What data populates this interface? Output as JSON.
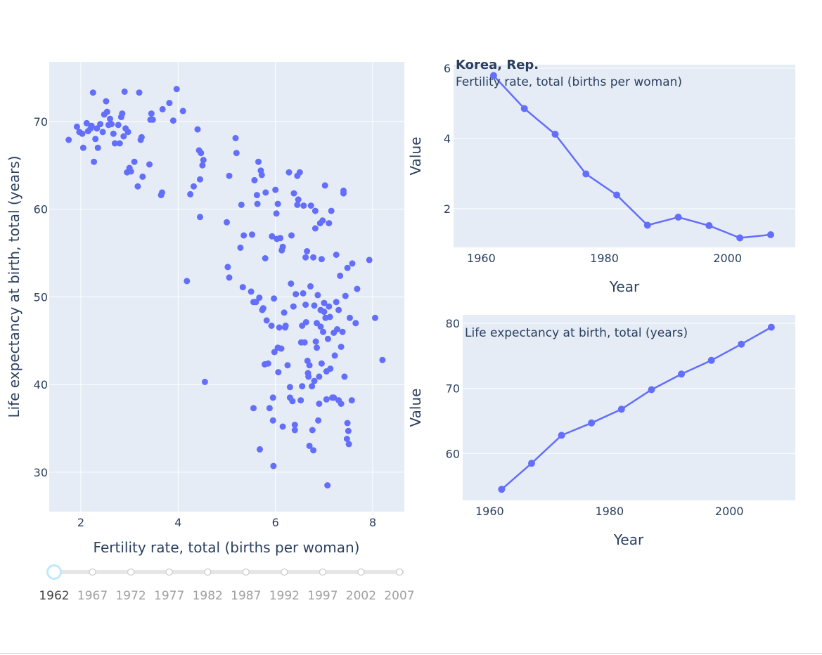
{
  "colors": {
    "marker": "#636efa",
    "plot_bg": "#e5ecf6",
    "text": "#2a3f5f"
  },
  "chart_data": [
    {
      "type": "scatter",
      "xlabel": "Fertility rate, total (births per woman)",
      "ylabel": "Life expectancy at birth, total (years)",
      "xlim": [
        1.35,
        8.65
      ],
      "ylim": [
        25.5,
        76.8
      ],
      "xticks": [
        2,
        4,
        6,
        8
      ],
      "yticks": [
        30,
        40,
        50,
        60,
        70
      ],
      "grid": true,
      "points": [
        [
          1.75,
          67.9
        ],
        [
          1.92,
          69.4
        ],
        [
          1.97,
          68.8
        ],
        [
          2.03,
          68.6
        ],
        [
          2.05,
          67.0
        ],
        [
          2.12,
          69.8
        ],
        [
          2.15,
          68.9
        ],
        [
          2.2,
          69.2
        ],
        [
          2.22,
          69.5
        ],
        [
          2.25,
          73.3
        ],
        [
          2.27,
          65.4
        ],
        [
          2.3,
          68.0
        ],
        [
          2.33,
          69.2
        ],
        [
          2.35,
          67.0
        ],
        [
          2.4,
          69.7
        ],
        [
          2.45,
          68.8
        ],
        [
          2.48,
          70.8
        ],
        [
          2.52,
          72.3
        ],
        [
          2.54,
          71.1
        ],
        [
          2.57,
          69.6
        ],
        [
          2.6,
          70.3
        ],
        [
          2.63,
          69.7
        ],
        [
          2.67,
          68.6
        ],
        [
          2.7,
          67.5
        ],
        [
          2.77,
          69.6
        ],
        [
          2.8,
          67.5
        ],
        [
          2.83,
          70.5
        ],
        [
          2.85,
          70.9
        ],
        [
          2.88,
          68.3
        ],
        [
          2.9,
          73.4
        ],
        [
          2.92,
          69.2
        ],
        [
          2.95,
          64.2
        ],
        [
          2.97,
          68.8
        ],
        [
          3.0,
          64.7
        ],
        [
          3.03,
          64.3
        ],
        [
          3.1,
          65.4
        ],
        [
          3.17,
          62.6
        ],
        [
          3.2,
          73.3
        ],
        [
          3.23,
          67.9
        ],
        [
          3.25,
          68.2
        ],
        [
          3.27,
          63.7
        ],
        [
          3.41,
          65.1
        ],
        [
          3.43,
          70.2
        ],
        [
          3.45,
          70.9
        ],
        [
          3.48,
          70.2
        ],
        [
          3.65,
          61.6
        ],
        [
          3.67,
          61.9
        ],
        [
          3.68,
          71.4
        ],
        [
          3.82,
          72.1
        ],
        [
          3.9,
          70.1
        ],
        [
          3.97,
          73.7
        ],
        [
          4.1,
          71.2
        ],
        [
          4.25,
          61.7
        ],
        [
          4.32,
          62.6
        ],
        [
          4.4,
          69.1
        ],
        [
          4.43,
          66.7
        ],
        [
          4.45,
          59.1
        ],
        [
          4.47,
          66.4
        ],
        [
          4.5,
          65.0
        ],
        [
          4.52,
          65.6
        ],
        [
          4.55,
          40.3
        ],
        [
          4.18,
          51.8
        ],
        [
          4.45,
          63.4
        ],
        [
          5.0,
          58.5
        ],
        [
          5.02,
          53.4
        ],
        [
          5.05,
          52.2
        ],
        [
          5.05,
          63.8
        ],
        [
          5.18,
          68.1
        ],
        [
          5.2,
          66.4
        ],
        [
          5.28,
          55.6
        ],
        [
          5.3,
          60.5
        ],
        [
          5.33,
          51.1
        ],
        [
          5.35,
          57.0
        ],
        [
          5.5,
          50.6
        ],
        [
          5.52,
          57.1
        ],
        [
          5.55,
          49.4
        ],
        [
          5.55,
          37.3
        ],
        [
          5.57,
          63.3
        ],
        [
          5.6,
          49.4
        ],
        [
          5.62,
          61.6
        ],
        [
          5.63,
          60.6
        ],
        [
          5.65,
          65.4
        ],
        [
          5.67,
          49.9
        ],
        [
          5.68,
          32.6
        ],
        [
          5.7,
          64.4
        ],
        [
          5.72,
          63.9
        ],
        [
          5.73,
          48.5
        ],
        [
          5.75,
          48.7
        ],
        [
          5.78,
          42.3
        ],
        [
          5.79,
          54.4
        ],
        [
          5.8,
          61.9
        ],
        [
          5.82,
          47.3
        ],
        [
          5.85,
          42.4
        ],
        [
          5.88,
          37.3
        ],
        [
          5.92,
          46.7
        ],
        [
          5.93,
          56.9
        ],
        [
          5.95,
          38.5
        ],
        [
          5.95,
          35.9
        ],
        [
          5.96,
          30.7
        ],
        [
          5.97,
          49.8
        ],
        [
          5.98,
          43.7
        ],
        [
          6.0,
          62.2
        ],
        [
          6.02,
          59.5
        ],
        [
          6.03,
          56.6
        ],
        [
          6.05,
          44.2
        ],
        [
          6.05,
          60.6
        ],
        [
          6.06,
          41.4
        ],
        [
          6.08,
          46.5
        ],
        [
          6.1,
          56.7
        ],
        [
          6.12,
          44.1
        ],
        [
          6.13,
          55.3
        ],
        [
          6.15,
          55.7
        ],
        [
          6.15,
          35.2
        ],
        [
          6.18,
          48.2
        ],
        [
          6.2,
          46.5
        ],
        [
          6.21,
          46.7
        ],
        [
          6.25,
          42.2
        ],
        [
          6.28,
          64.2
        ],
        [
          6.3,
          39.7
        ],
        [
          6.3,
          38.5
        ],
        [
          6.32,
          51.5
        ],
        [
          6.33,
          57.0
        ],
        [
          6.35,
          38.1
        ],
        [
          6.37,
          48.9
        ],
        [
          6.38,
          61.8
        ],
        [
          6.4,
          35.4
        ],
        [
          6.4,
          34.8
        ],
        [
          6.42,
          50.3
        ],
        [
          6.45,
          60.5
        ],
        [
          6.45,
          63.8
        ],
        [
          6.47,
          61.1
        ],
        [
          6.5,
          64.2
        ],
        [
          6.52,
          38.2
        ],
        [
          6.53,
          44.8
        ],
        [
          6.55,
          46.7
        ],
        [
          6.55,
          39.8
        ],
        [
          6.57,
          50.4
        ],
        [
          6.58,
          60.4
        ],
        [
          6.6,
          44.8
        ],
        [
          6.62,
          54.5
        ],
        [
          6.62,
          49.1
        ],
        [
          6.63,
          47.1
        ],
        [
          6.65,
          55.2
        ],
        [
          6.66,
          42.7
        ],
        [
          6.67,
          41.3
        ],
        [
          6.68,
          40.9
        ],
        [
          6.7,
          42.2
        ],
        [
          6.7,
          33.0
        ],
        [
          6.72,
          51.2
        ],
        [
          6.73,
          60.4
        ],
        [
          6.75,
          39.8
        ],
        [
          6.76,
          34.8
        ],
        [
          6.78,
          54.5
        ],
        [
          6.78,
          32.5
        ],
        [
          6.8,
          49.0
        ],
        [
          6.8,
          40.4
        ],
        [
          6.82,
          57.8
        ],
        [
          6.82,
          59.8
        ],
        [
          6.83,
          44.9
        ],
        [
          6.85,
          47.0
        ],
        [
          6.85,
          44.2
        ],
        [
          6.87,
          50.2
        ],
        [
          6.88,
          35.9
        ],
        [
          6.9,
          40.9
        ],
        [
          6.9,
          37.8
        ],
        [
          6.92,
          58.4
        ],
        [
          6.93,
          48.5
        ],
        [
          6.93,
          46.6
        ],
        [
          6.95,
          54.3
        ],
        [
          6.95,
          42.4
        ],
        [
          6.97,
          58.7
        ],
        [
          6.98,
          46.0
        ],
        [
          7.0,
          49.3
        ],
        [
          7.0,
          48.3
        ],
        [
          7.02,
          62.7
        ],
        [
          7.03,
          47.6
        ],
        [
          7.05,
          41.5
        ],
        [
          7.05,
          38.3
        ],
        [
          7.07,
          28.5
        ],
        [
          7.08,
          45.2
        ],
        [
          7.1,
          58.4
        ],
        [
          7.1,
          48.9
        ],
        [
          7.12,
          47.7
        ],
        [
          7.13,
          41.8
        ],
        [
          7.15,
          59.8
        ],
        [
          7.17,
          38.5
        ],
        [
          7.2,
          45.9
        ],
        [
          7.2,
          38.5
        ],
        [
          7.22,
          43.3
        ],
        [
          7.25,
          54.8
        ],
        [
          7.25,
          49.4
        ],
        [
          7.27,
          46.3
        ],
        [
          7.3,
          48.5
        ],
        [
          7.3,
          38.2
        ],
        [
          7.33,
          52.4
        ],
        [
          7.35,
          37.8
        ],
        [
          7.35,
          44.3
        ],
        [
          7.38,
          46.0
        ],
        [
          7.4,
          62.1
        ],
        [
          7.4,
          61.8
        ],
        [
          7.42,
          40.9
        ],
        [
          7.44,
          50.1
        ],
        [
          7.47,
          33.8
        ],
        [
          7.48,
          53.3
        ],
        [
          7.48,
          35.6
        ],
        [
          7.5,
          34.7
        ],
        [
          7.51,
          33.2
        ],
        [
          7.53,
          47.6
        ],
        [
          7.57,
          38.2
        ],
        [
          7.58,
          53.8
        ],
        [
          7.65,
          47.0
        ],
        [
          7.68,
          50.9
        ],
        [
          7.93,
          54.2
        ],
        [
          8.05,
          47.6
        ],
        [
          8.2,
          42.8
        ]
      ]
    },
    {
      "type": "line",
      "ylabel": "Value",
      "xlabel": "Year",
      "annotation_title": "Korea, Rep.",
      "annotation_subtitle": "Fertility rate, total (births per woman)",
      "xlim": [
        1955.5,
        2011
      ],
      "ylim": [
        0.9,
        6.1
      ],
      "xticks": [
        1960,
        1980,
        2000
      ],
      "yticks": [
        2,
        4,
        6
      ],
      "grid": true,
      "x": [
        1962,
        1967,
        1972,
        1977,
        1982,
        1987,
        1992,
        1997,
        2002,
        2007
      ],
      "values": [
        5.79,
        4.85,
        4.12,
        2.99,
        2.39,
        1.53,
        1.76,
        1.52,
        1.17,
        1.26
      ]
    },
    {
      "type": "line",
      "ylabel": "Value",
      "xlabel": "Year",
      "annotation_subtitle": "Life expectancy at birth, total (years)",
      "xlim": [
        1955.5,
        2011
      ],
      "ylim": [
        52.8,
        81.3
      ],
      "xticks": [
        1960,
        1980,
        2000
      ],
      "yticks": [
        60,
        70,
        80
      ],
      "grid": true,
      "x": [
        1962,
        1967,
        1972,
        1977,
        1982,
        1987,
        1992,
        1997,
        2002,
        2007
      ],
      "values": [
        54.5,
        58.5,
        62.8,
        64.7,
        66.8,
        69.8,
        72.2,
        74.3,
        76.8,
        79.4
      ]
    }
  ],
  "slider": {
    "labels": [
      "1962",
      "1967",
      "1972",
      "1977",
      "1982",
      "1987",
      "1992",
      "1997",
      "2002",
      "2007"
    ],
    "active_index": 0
  }
}
